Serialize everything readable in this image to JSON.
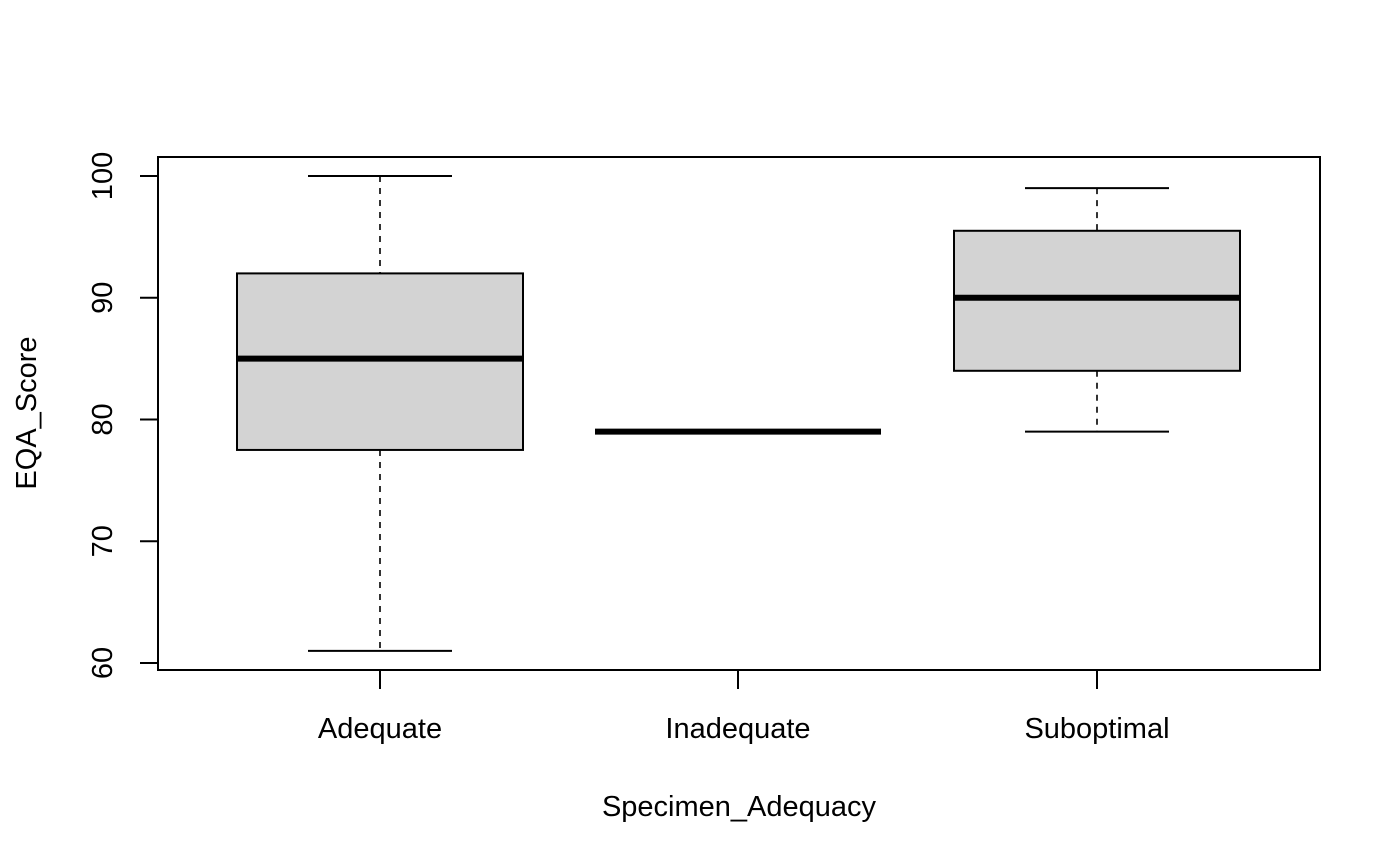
{
  "chart_data": {
    "type": "box",
    "title": "",
    "xlabel": "Specimen_Adequacy",
    "ylabel": "EQA_Score",
    "categories": [
      "Adequate",
      "Inadequate",
      "Suboptimal"
    ],
    "boxes": [
      {
        "category": "Adequate",
        "whisker_low": 61,
        "q1": 77.5,
        "median": 85,
        "q3": 92,
        "whisker_high": 100
      },
      {
        "category": "Inadequate",
        "whisker_low": 79,
        "q1": 79,
        "median": 79,
        "q3": 79,
        "whisker_high": 79
      },
      {
        "category": "Suboptimal",
        "whisker_low": 79,
        "q1": 84,
        "median": 90,
        "q3": 95.5,
        "whisker_high": 99
      }
    ],
    "yticks": [
      60,
      70,
      80,
      90,
      100
    ],
    "ylim": [
      59.5,
      101.5
    ],
    "grid": false,
    "box_fill": "#d3d3d3",
    "line_color": "#000000"
  }
}
